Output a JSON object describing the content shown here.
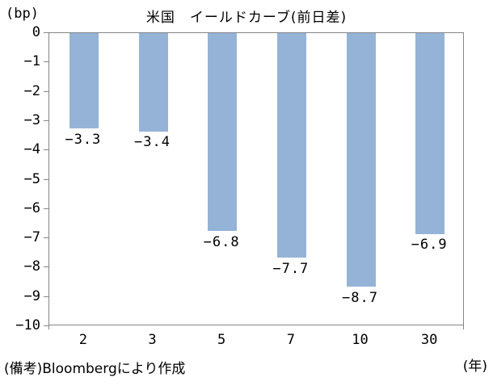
{
  "chart_data": {
    "type": "bar",
    "title": "米国　イールドカーブ(前日差)",
    "y_unit_label": "(bp)",
    "x_unit_label": "(年)",
    "source_note": "(備考)Bloombergにより作成",
    "categories": [
      "2",
      "3",
      "5",
      "7",
      "10",
      "30"
    ],
    "values": [
      -3.3,
      -3.4,
      -6.8,
      -7.7,
      -8.7,
      -6.9
    ],
    "data_labels": [
      "-3.3",
      "-3.4",
      "-6.8",
      "-7.7",
      "-8.7",
      "-6.9"
    ],
    "ylim": [
      -10,
      0
    ],
    "ytick_labels": [
      "0",
      "-1",
      "-2",
      "-3",
      "-4",
      "-5",
      "-6",
      "-7",
      "-8",
      "-9",
      "-10"
    ],
    "bar_color": "#95B3D7",
    "axis_color": "#858585",
    "grid": "off",
    "legend": "none"
  }
}
